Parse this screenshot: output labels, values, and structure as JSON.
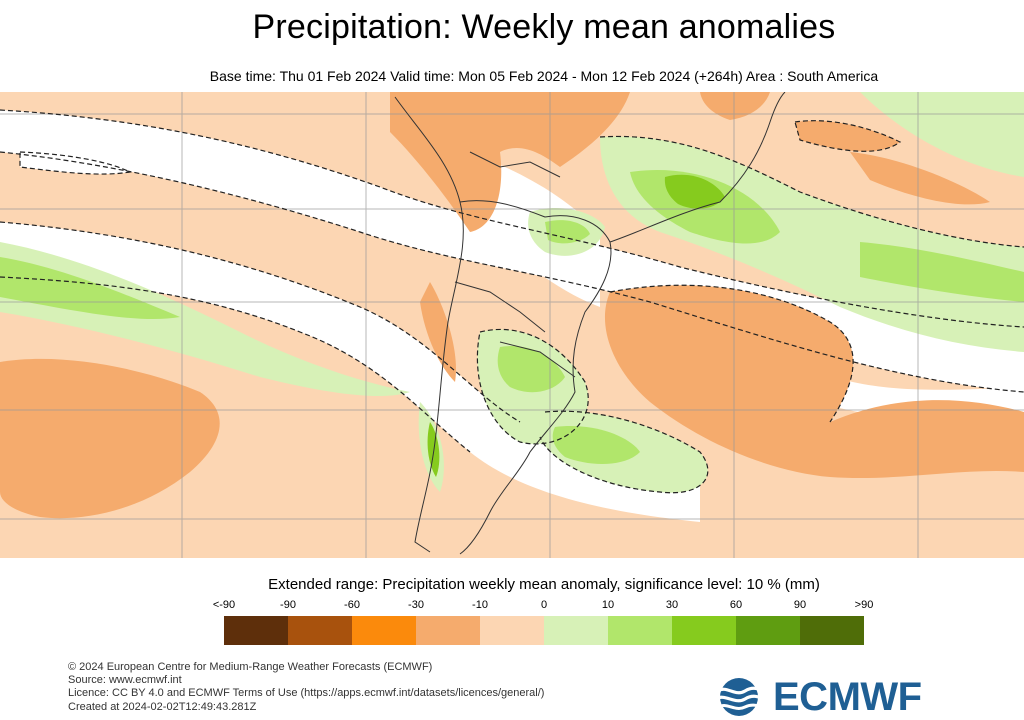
{
  "title": "Precipitation: Weekly mean anomalies",
  "subtitle": "Base time: Thu 01 Feb 2024 Valid time: Mon 05 Feb 2024 - Mon 12 Feb 2024 (+264h) Area : South America",
  "legend": {
    "title": "Extended range: Precipitation weekly mean anomaly, significance level: 10 % (mm)",
    "labels": [
      "<-90",
      "-90",
      "-60",
      "-30",
      "-10",
      "0",
      "10",
      "30",
      "60",
      "90",
      ">90"
    ],
    "colors": [
      "#5e2f0b",
      "#a8520d",
      "#fb8a0c",
      "#f5ab6d",
      "#fcd6b3",
      "#ffffff",
      "#d7f1b7",
      "#b1e66b",
      "#86cb1e",
      "#5f9d11",
      "#4f6d08"
    ]
  },
  "footer": {
    "line1": "© 2024 European Centre for Medium-Range Weather Forecasts (ECMWF)",
    "line2": "Source: www.ecmwf.int",
    "line3": "Licence: CC BY 4.0 and ECMWF Terms of Use (https://apps.ecmwf.int/datasets/licences/general/)",
    "line4": "Created at 2024-02-02T12:49:43.281Z"
  },
  "logo": {
    "text": "ECMWF"
  }
}
